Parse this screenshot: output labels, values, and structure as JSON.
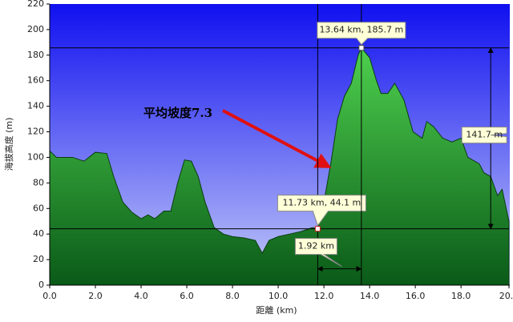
{
  "chart_data": {
    "type": "area",
    "y_label": "海拔高度 (m)",
    "x_label": "距離  (km)",
    "xlim": [
      0,
      20.1
    ],
    "ylim": [
      0,
      220
    ],
    "xticks": [
      {
        "value": 0,
        "label": "0.0"
      },
      {
        "value": 2,
        "label": "2.0"
      },
      {
        "value": 4,
        "label": "4.0"
      },
      {
        "value": 6,
        "label": "6.0"
      },
      {
        "value": 8,
        "label": "8.0"
      },
      {
        "value": 10,
        "label": "10.0"
      },
      {
        "value": 12,
        "label": "12.0"
      },
      {
        "value": 14,
        "label": "14.0"
      },
      {
        "value": 16,
        "label": "16.0"
      },
      {
        "value": 18,
        "label": "18.0"
      },
      {
        "value": 20.1,
        "label": "20.1"
      }
    ],
    "yticks": [
      0,
      20,
      40,
      60,
      80,
      100,
      120,
      140,
      160,
      180,
      200,
      220
    ],
    "x": [
      0,
      0.3,
      1,
      1.5,
      2,
      2.5,
      2.8,
      3.2,
      3.6,
      4.0,
      4.3,
      4.6,
      5.0,
      5.3,
      5.6,
      5.9,
      6.2,
      6.5,
      6.8,
      7.2,
      7.6,
      8.0,
      8.5,
      9.0,
      9.3,
      9.6,
      10.0,
      10.5,
      11.0,
      11.5,
      11.73,
      12.0,
      12.3,
      12.6,
      12.9,
      13.2,
      13.5,
      13.64,
      14.0,
      14.3,
      14.5,
      14.8,
      15.1,
      15.5,
      15.9,
      16.3,
      16.5,
      16.8,
      17.2,
      17.6,
      18.0,
      18.3,
      18.8,
      19.0,
      19.3,
      19.6,
      19.8,
      20.1
    ],
    "values": [
      105,
      100,
      100,
      97,
      104,
      103,
      85,
      65,
      57,
      52,
      55,
      52,
      58,
      58,
      80,
      98,
      97,
      85,
      65,
      45,
      40,
      38,
      37,
      35,
      25,
      35,
      38,
      40,
      42,
      45,
      44.1,
      65,
      95,
      130,
      148,
      158,
      180,
      185.7,
      178,
      160,
      150,
      150,
      158,
      145,
      120,
      115,
      128,
      124,
      115,
      112,
      115,
      100,
      95,
      88,
      85,
      70,
      75,
      50
    ],
    "markers": [
      {
        "x": 11.73,
        "y": 44.1,
        "label": "11.73 km, 44.1 m"
      },
      {
        "x": 13.64,
        "y": 185.7,
        "label": "13.64 km, 185.7 m"
      }
    ],
    "distance": {
      "value": 1.92,
      "label": "1.92 km"
    },
    "rise": {
      "value": 141.7,
      "label": "141.7 m"
    },
    "slope_note": "平均坡度7.3"
  }
}
